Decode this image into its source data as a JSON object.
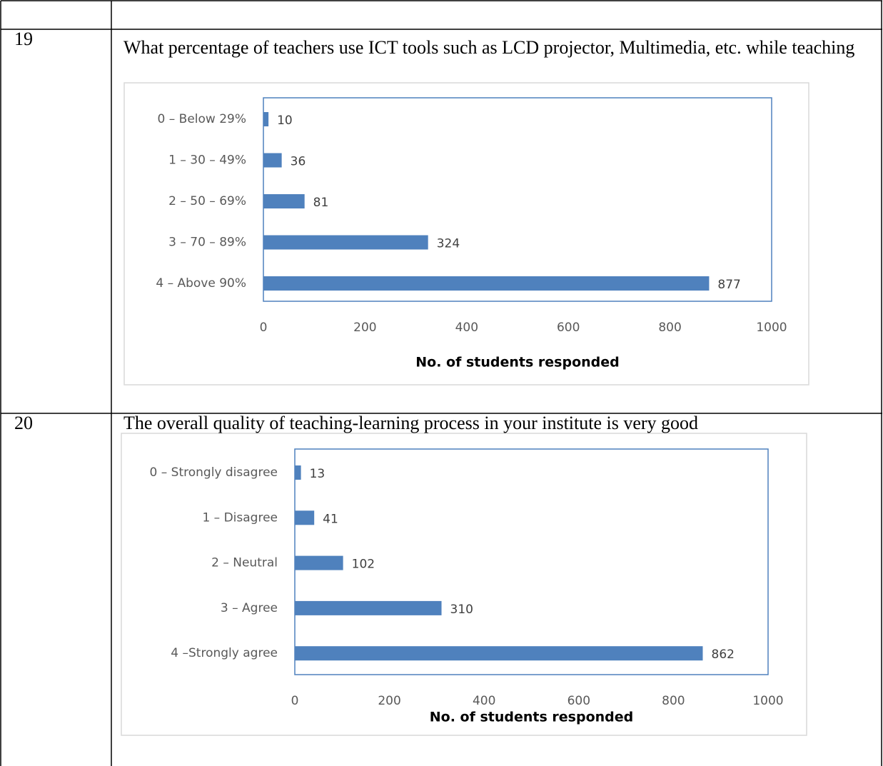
{
  "table": {
    "rows": [
      {
        "number": "19",
        "question": "What percentage of teachers use ICT tools such as LCD projector, Multimedia, etc. while teaching",
        "chart": {
          "type": "bar",
          "orientation": "horizontal",
          "categories": [
            "0 – Below 29%",
            "1 – 30 – 49%",
            "2 – 50 – 69%",
            "3 – 70 – 89%",
            "4 – Above 90%"
          ],
          "values": [
            10,
            36,
            81,
            324,
            877
          ],
          "color": "#4f81bd",
          "xlim": [
            0,
            1000
          ],
          "xticks": [
            0,
            200,
            400,
            600,
            800,
            1000
          ],
          "xlabel": "No. of students responded"
        }
      },
      {
        "number": "20",
        "question": "The overall quality of teaching-learning process in your institute is very good",
        "chart": {
          "type": "bar",
          "orientation": "horizontal",
          "categories": [
            "0 – Strongly disagree",
            "1 – Disagree",
            "2 – Neutral",
            "3 – Agree",
            "4 –Strongly agree"
          ],
          "values": [
            13,
            41,
            102,
            310,
            862
          ],
          "color": "#4f81bd",
          "xlim": [
            0,
            1000
          ],
          "xticks": [
            0,
            200,
            400,
            600,
            800,
            1000
          ],
          "xlabel": "No. of students responded"
        }
      }
    ]
  }
}
